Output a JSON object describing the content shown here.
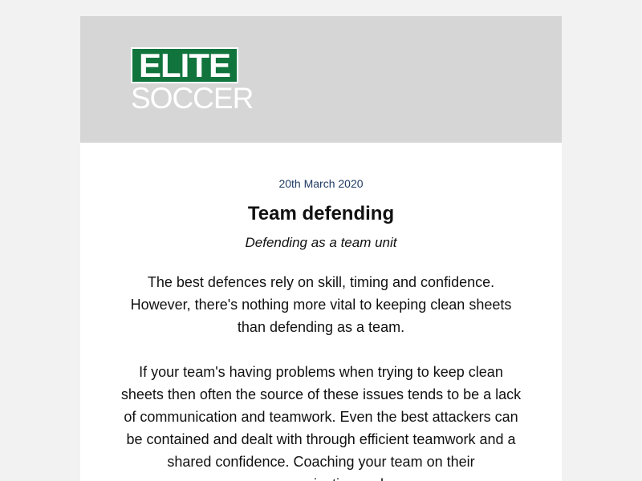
{
  "logo": {
    "line1": "ELITE",
    "line2": "SOCCER"
  },
  "article": {
    "date": "20th March 2020",
    "title": "Team defending",
    "subtitle": "Defending as a team unit",
    "paragraphs": [
      "The best defences rely on skill, timing and confidence. However, there's nothing more vital to keeping clean sheets than defending as a team.",
      "If your team's having problems when trying to keep clean sheets then often the source of these issues tends to be a lack of communication and teamwork. Even the best attackers can be contained and dealt with through efficient teamwork and a shared confidence. Coaching your team on their communication and"
    ]
  },
  "colors": {
    "brand_green": "#11743d",
    "header_bg": "#d6d6d6",
    "date_color": "#1f3b63"
  }
}
